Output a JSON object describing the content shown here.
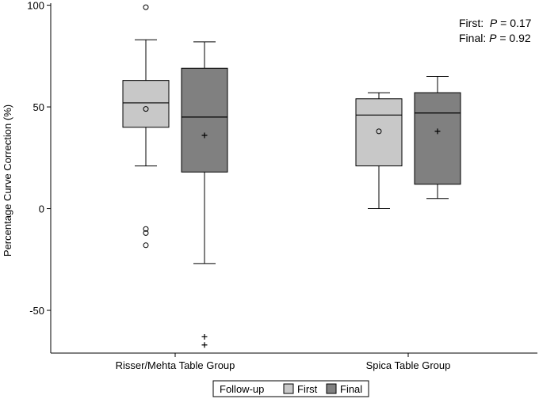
{
  "chart_data": {
    "type": "boxplot",
    "ylabel": "Percentage Curve Correction (%)",
    "ylim": [
      -71,
      101
    ],
    "yticks": [
      100,
      50,
      0,
      -50
    ],
    "ytick_labels": [
      "100",
      "50",
      "0",
      "-50"
    ],
    "categories": [
      "Risser/Mehta Table Group",
      "Spica Table Group"
    ],
    "legend": {
      "title": "Follow-up",
      "placement": "bottom",
      "entries": [
        "First",
        "Final"
      ]
    },
    "series": [
      {
        "name": "First",
        "color": "#c8c8c8",
        "mean_marker": "circle",
        "outlier_marker": "circle",
        "boxes": [
          {
            "category": "Risser/Mehta Table Group",
            "whisker_low": 21,
            "q1": 40,
            "median": 52,
            "q3": 63,
            "whisker_high": 83,
            "mean": 49,
            "outliers": [
              99,
              -10,
              -12,
              -18
            ]
          },
          {
            "category": "Spica Table Group",
            "whisker_low": 0,
            "q1": 21,
            "median": 46,
            "q3": 54,
            "whisker_high": 57,
            "mean": 38,
            "outliers": []
          }
        ]
      },
      {
        "name": "Final",
        "color": "#808080",
        "mean_marker": "plus",
        "outlier_marker": "plus",
        "boxes": [
          {
            "category": "Risser/Mehta Table Group",
            "whisker_low": -27,
            "q1": 18,
            "median": 45,
            "q3": 69,
            "whisker_high": 82,
            "mean": 36,
            "outliers": [
              -63,
              -67
            ]
          },
          {
            "category": "Spica Table Group",
            "whisker_low": 5,
            "q1": 12,
            "median": 47,
            "q3": 57,
            "whisker_high": 65,
            "mean": 38,
            "outliers": []
          }
        ]
      }
    ],
    "annotations": [
      {
        "prefix": "First:  ",
        "p_symbol": "P",
        "value": " = 0.17"
      },
      {
        "prefix": "Final: ",
        "p_symbol": "P",
        "value": " = 0.92"
      }
    ]
  }
}
